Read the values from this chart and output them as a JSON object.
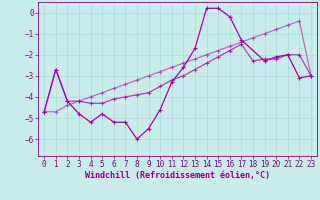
{
  "xlabel": "Windchill (Refroidissement éolien,°C)",
  "background_color": "#c8ecec",
  "grid_color": "#aadddd",
  "line_color": "#aa00aa",
  "x": [
    0,
    1,
    2,
    3,
    4,
    5,
    6,
    7,
    8,
    9,
    10,
    11,
    12,
    13,
    14,
    15,
    16,
    17,
    18,
    19,
    20,
    21,
    22,
    23
  ],
  "series1": [
    -4.7,
    -2.7,
    -4.2,
    -4.8,
    -5.2,
    -4.8,
    -5.2,
    -5.2,
    -6.0,
    -5.5,
    -4.6,
    -3.3,
    -2.6,
    -1.7,
    0.2,
    0.2,
    -0.2,
    -1.3,
    null,
    -2.3,
    -2.1,
    -2.0,
    -3.1,
    -3.0
  ],
  "series2": [
    -4.7,
    -2.7,
    -4.2,
    -4.2,
    -4.3,
    -4.3,
    -4.1,
    -4.0,
    -3.9,
    -3.8,
    -3.5,
    -3.2,
    -3.0,
    -2.7,
    -2.4,
    -2.1,
    -1.8,
    -1.5,
    -2.3,
    -2.2,
    -2.2,
    -2.0,
    -2.0,
    -3.0
  ],
  "series3": [
    -4.7,
    -4.7,
    -4.4,
    -4.2,
    -4.0,
    -3.8,
    -3.6,
    -3.4,
    -3.2,
    -3.0,
    -2.8,
    -2.6,
    -2.4,
    -2.2,
    -2.0,
    -1.8,
    -1.6,
    -1.4,
    -1.2,
    -1.0,
    -0.8,
    -0.6,
    -0.4,
    -3.0
  ],
  "ylim": [
    -6.8,
    0.5
  ],
  "xlim": [
    -0.5,
    23.5
  ],
  "yticks": [
    0,
    -1,
    -2,
    -3,
    -4,
    -5,
    -6
  ],
  "xticks": [
    0,
    1,
    2,
    3,
    4,
    5,
    6,
    7,
    8,
    9,
    10,
    11,
    12,
    13,
    14,
    15,
    16,
    17,
    18,
    19,
    20,
    21,
    22,
    23
  ],
  "tick_fontsize": 5.5,
  "xlabel_fontsize": 6.0,
  "tick_color": "#880088",
  "spine_color": "#880088"
}
